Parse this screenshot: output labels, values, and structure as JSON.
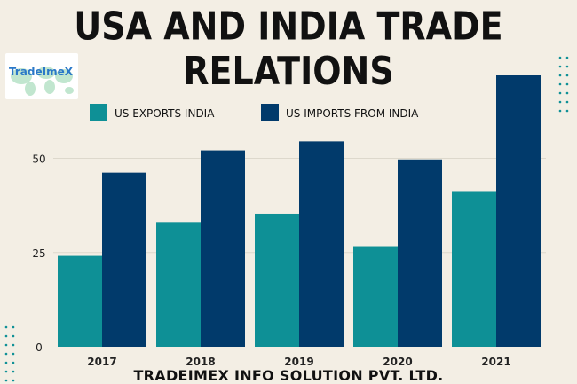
{
  "title": "USA AND INDIA TRADE RELATIONS",
  "logo_text": "TradeImeX",
  "footer": "TRADEIMEX INFO SOLUTION PVT. LTD.",
  "chart_data": {
    "type": "bar",
    "categories": [
      "2017",
      "2018",
      "2019",
      "2020",
      "2021"
    ],
    "series": [
      {
        "name": "US EXPORTS INDIA",
        "color": "#0e9096",
        "values": [
          24.1,
          33.1,
          35.3,
          26.7,
          41.3
        ]
      },
      {
        "name": "US IMPORTS FROM INDIA",
        "color": "#013a6b",
        "values": [
          46.2,
          52.1,
          54.5,
          49.7,
          72.0
        ]
      }
    ],
    "y_ticks": [
      0,
      25,
      50
    ],
    "ylim": [
      0,
      75
    ],
    "grid": true,
    "legend": "top"
  }
}
